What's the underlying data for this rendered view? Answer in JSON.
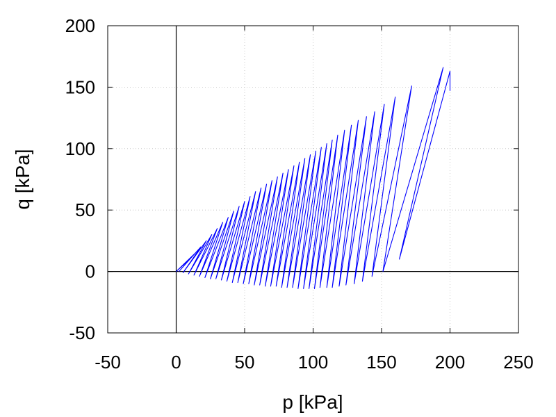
{
  "chart_data": {
    "type": "line",
    "title": "",
    "xlabel": "p [kPa]",
    "ylabel": "q [kPa]",
    "xlim": [
      -50,
      250
    ],
    "ylim": [
      -50,
      200
    ],
    "x_ticks": [
      "-50",
      "0",
      "50",
      "100",
      "150",
      "200",
      "250"
    ],
    "y_ticks": [
      "-50",
      "0",
      "50",
      "100",
      "150",
      "200"
    ],
    "grid": true,
    "legend": "none",
    "zero_axes": true,
    "series": [
      {
        "color": "#0000ff",
        "description_points": "stress path: starts at (200,147), rises to peak (195,166), then cycles with decreasing amplitude toward origin",
        "peak_points": [
          [
            200,
            163
          ],
          [
            195,
            166
          ],
          [
            172,
            151
          ],
          [
            160,
            142
          ],
          [
            152,
            136
          ],
          [
            145,
            130
          ],
          [
            139,
            126
          ],
          [
            133,
            123
          ],
          [
            128,
            119
          ],
          [
            123,
            115
          ],
          [
            118,
            111
          ],
          [
            114,
            107
          ],
          [
            110,
            104
          ],
          [
            106,
            101
          ],
          [
            102,
            98
          ],
          [
            98,
            95
          ],
          [
            94,
            92
          ],
          [
            90,
            89
          ],
          [
            86,
            86
          ],
          [
            82,
            83
          ],
          [
            78,
            80
          ],
          [
            74,
            77
          ],
          [
            70,
            74
          ],
          [
            66,
            71
          ],
          [
            62,
            68
          ],
          [
            58,
            65
          ],
          [
            54,
            61
          ],
          [
            50,
            57
          ],
          [
            46,
            53
          ],
          [
            42,
            49
          ],
          [
            38,
            44
          ],
          [
            34,
            40
          ],
          [
            30,
            35
          ],
          [
            26,
            30
          ],
          [
            22,
            25
          ],
          [
            18,
            20
          ],
          [
            14,
            15
          ],
          [
            10,
            10
          ],
          [
            6,
            6
          ],
          [
            3,
            3
          ]
        ],
        "trough_points": [
          [
            163,
            10
          ],
          [
            151,
            0
          ],
          [
            143,
            -4
          ],
          [
            136,
            -8
          ],
          [
            130,
            -10
          ],
          [
            124,
            -11
          ],
          [
            119,
            -12
          ],
          [
            114,
            -13
          ],
          [
            110,
            -13
          ],
          [
            105,
            -13
          ],
          [
            101,
            -14
          ],
          [
            97,
            -14
          ],
          [
            93,
            -14
          ],
          [
            89,
            -14
          ],
          [
            85,
            -13
          ],
          [
            81,
            -13
          ],
          [
            77,
            -13
          ],
          [
            73,
            -12
          ],
          [
            69,
            -12
          ],
          [
            65,
            -12
          ],
          [
            61,
            -11
          ],
          [
            57,
            -11
          ],
          [
            53,
            -10
          ],
          [
            49,
            -10
          ],
          [
            45,
            -9
          ],
          [
            41,
            -9
          ],
          [
            37,
            -8
          ],
          [
            33,
            -7
          ],
          [
            29,
            -6
          ],
          [
            25,
            -6
          ],
          [
            21,
            -5
          ],
          [
            17,
            -4
          ],
          [
            13,
            -3
          ],
          [
            9,
            -2
          ],
          [
            5,
            -1
          ],
          [
            2,
            0
          ],
          [
            0,
            0
          ]
        ]
      }
    ]
  }
}
